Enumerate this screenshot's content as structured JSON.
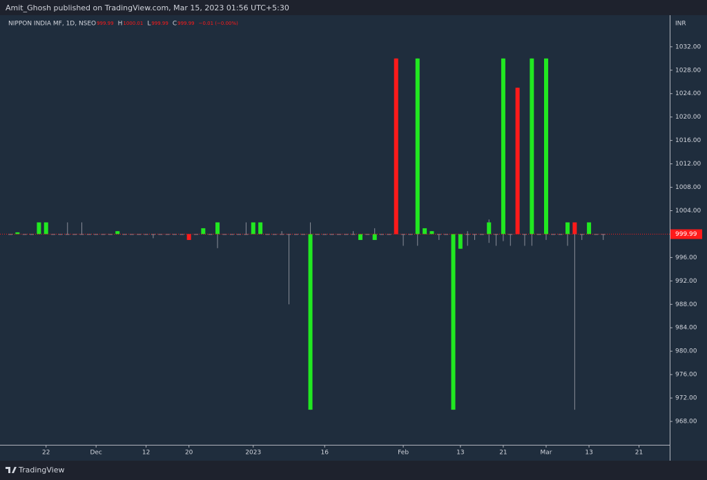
{
  "header": {
    "published": "Amit_Ghosh published on TradingView.com, Mar 15, 2023 01:56 UTC+5:30"
  },
  "footer": {
    "brand": "TradingView"
  },
  "chart_data": {
    "type": "candlestick",
    "title": "NIPPON INDIA MF, 1D, NSE",
    "ohlc_legend": [
      {
        "key": "O",
        "text": "999.99"
      },
      {
        "key": "H",
        "text": "1000.01"
      },
      {
        "key": "L",
        "text": "999.99"
      },
      {
        "key": "C",
        "text": "999.99"
      }
    ],
    "change_text": "−0.01 (−0.00%)",
    "currency": "INR",
    "up_color": "#21e821",
    "down_color": "#ff1a1a",
    "doji_color": "#8a8e99",
    "wick_color": "#8a8e99",
    "open": [
      1000,
      1000,
      1000,
      1000,
      1000,
      1000,
      1000,
      1000,
      1000,
      1000,
      1000,
      1000,
      1000,
      1000,
      1000,
      1000,
      1000,
      1000,
      1000,
      1000,
      1000,
      1000,
      1000,
      1000,
      1000,
      1000,
      1000,
      1000,
      1000,
      1000,
      1000,
      1000,
      1000,
      1000,
      1000,
      1000,
      1000,
      1000,
      1000,
      1000,
      1000,
      1000,
      970,
      1000,
      1000,
      1000,
      1000,
      1000,
      1000,
      999,
      1000,
      999,
      1000,
      1000,
      1030,
      1000,
      1000,
      1000,
      1000,
      1000,
      1000,
      1000,
      970,
      997.5,
      1000,
      1000,
      1000,
      1000,
      1000,
      1000,
      1000,
      1025,
      1000,
      1000,
      1000,
      1000,
      1000,
      1000,
      1000,
      1002,
      1000,
      1000,
      1000,
      1000
    ],
    "high": [
      1000,
      1000.3,
      1000,
      1000,
      1002,
      1002,
      1000,
      1000,
      1002,
      1000,
      1002,
      1000,
      1000,
      1000,
      1000,
      1000.5,
      1000,
      1000,
      1000,
      1000,
      1000,
      1000,
      1000,
      1000,
      1000,
      1000,
      1000,
      1001,
      1000,
      1002,
      1000,
      1000,
      1000,
      1002,
      1002,
      1002,
      1000,
      1000,
      1000.5,
      1000,
      1000,
      1000,
      1002,
      1000,
      1000,
      1000,
      1000,
      1000,
      1000.5,
      1000,
      1000,
      1001,
      1000,
      1000,
      1030,
      1000,
      1000,
      1030,
      1001,
      1000.5,
      1000,
      1000,
      1000,
      1000,
      1000.5,
      1000,
      1000,
      1002.5,
      1000,
      1030,
      1000,
      1025,
      1000,
      1030,
      1000,
      1030,
      1000,
      1000,
      1002,
      1002,
      1000,
      1002,
      1000,
      1000
    ],
    "low": [
      1000,
      1000,
      1000,
      1000,
      1000,
      1000,
      1000,
      1000,
      1000,
      1000,
      1000,
      1000,
      1000,
      1000,
      1000,
      1000,
      1000,
      1000,
      1000,
      1000,
      999.3,
      1000,
      1000,
      1000,
      1000,
      999,
      1000,
      1000,
      1000,
      997.6,
      1000,
      1000,
      1000,
      1000,
      1000,
      1000,
      1000,
      1000,
      1000,
      988,
      1000,
      1000,
      970,
      1000,
      1000,
      1000,
      1000,
      1000,
      1000,
      999,
      1000,
      999,
      1000,
      1000,
      1000,
      998,
      1000,
      998,
      1000,
      1000,
      999,
      1000,
      970,
      997.5,
      998,
      999,
      1000,
      998.5,
      998,
      998.8,
      998,
      1000,
      998,
      998,
      1000,
      999,
      1000,
      1000,
      998,
      970,
      999,
      1000,
      1000,
      999
    ],
    "close": [
      1000,
      1000.3,
      1000,
      1000,
      1002,
      1002,
      1000,
      1000,
      1000,
      1000,
      1000,
      1000,
      1000,
      1000,
      1000,
      1000.5,
      1000,
      1000,
      1000,
      1000,
      1000,
      1000,
      1000,
      1000,
      1000,
      999,
      1000,
      1001,
      1000,
      1002,
      1000,
      1000,
      1000,
      1000,
      1002,
      1002,
      1000,
      1000,
      1000,
      1000,
      1000,
      1000,
      1000,
      1000,
      1000,
      1000,
      1000,
      1000,
      1000,
      1000,
      1000,
      1000,
      1000,
      1000,
      1000,
      1000,
      1000,
      1030,
      1001,
      1000.5,
      1000,
      1000,
      1000,
      1000,
      1000,
      1000,
      1000,
      1002,
      1000,
      1030,
      1000,
      1000,
      1000,
      1030,
      1000,
      1030,
      1000,
      1000,
      1002,
      1000,
      1000,
      1002,
      1000,
      1000
    ],
    "last_price": 999.99,
    "xlim": [
      -1.45,
      92.3
    ],
    "xticks": [
      {
        "value": 5,
        "label": "22"
      },
      {
        "value": 12,
        "label": "Dec"
      },
      {
        "value": 19,
        "label": "12"
      },
      {
        "value": 25,
        "label": "20"
      },
      {
        "value": 34,
        "label": "2023"
      },
      {
        "value": 44,
        "label": "16"
      },
      {
        "value": 55,
        "label": "Feb"
      },
      {
        "value": 63,
        "label": "13"
      },
      {
        "value": 69,
        "label": "21"
      },
      {
        "value": 75,
        "label": "Mar"
      },
      {
        "value": 81,
        "label": "13"
      },
      {
        "value": 88,
        "label": "21"
      }
    ],
    "ylim": [
      964,
      1037.4
    ],
    "yticks": [
      {
        "value": 968,
        "label": "968.00"
      },
      {
        "value": 972,
        "label": "972.00"
      },
      {
        "value": 976,
        "label": "976.00"
      },
      {
        "value": 980,
        "label": "980.00"
      },
      {
        "value": 984,
        "label": "984.00"
      },
      {
        "value": 988,
        "label": "988.00"
      },
      {
        "value": 992,
        "label": "992.00"
      },
      {
        "value": 996,
        "label": "996.00"
      },
      {
        "value": 1004,
        "label": "1004.00"
      },
      {
        "value": 1008,
        "label": "1008.00"
      },
      {
        "value": 1012,
        "label": "1012.00"
      },
      {
        "value": 1016,
        "label": "1016.00"
      },
      {
        "value": 1020,
        "label": "1020.00"
      },
      {
        "value": 1024,
        "label": "1024.00"
      },
      {
        "value": 1028,
        "label": "1028.00"
      },
      {
        "value": 1032,
        "label": "1032.00"
      }
    ],
    "grid": false
  }
}
